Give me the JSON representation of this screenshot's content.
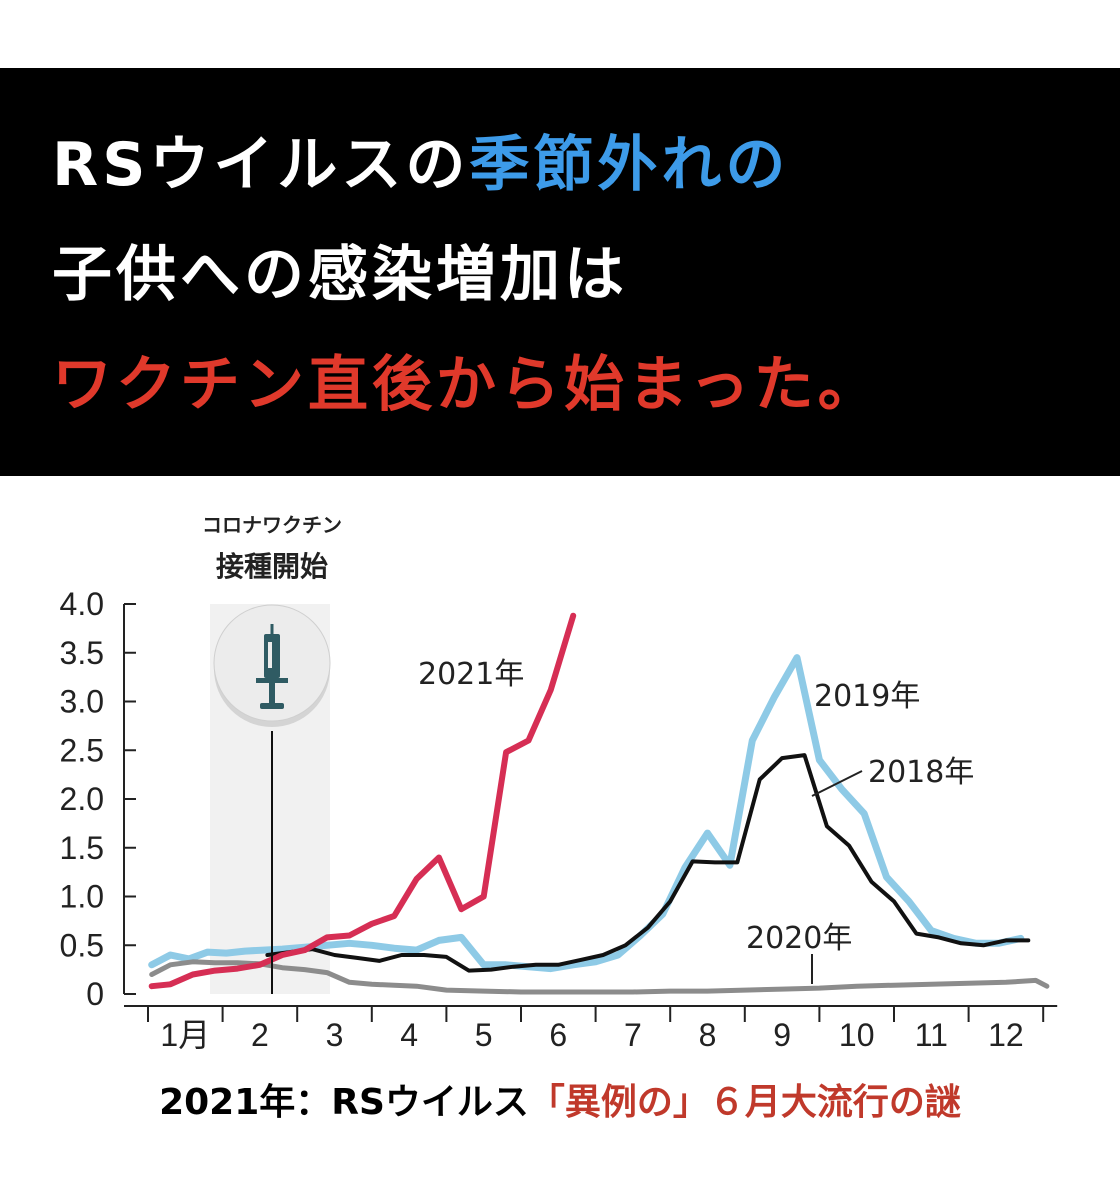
{
  "headline": {
    "line1": [
      {
        "text": "RSウイルスの",
        "color": "#ffffff"
      },
      {
        "text": "季節外れの",
        "color": "#3d9be9"
      }
    ],
    "line2": "子供への感染増加は",
    "line3": "ワクチン直後から始まった。",
    "line3_color": "#e0392b"
  },
  "caption": {
    "part1": "2021年：RSウイルス",
    "part2": "「異例の」６月大流行の謎",
    "part2_color": "#c0392b"
  },
  "chart_data": {
    "type": "line",
    "y_ticks": [
      "4.0",
      "3.5",
      "3.0",
      "2.5",
      "2.0",
      "1.5",
      "1.0",
      "0.5",
      "0"
    ],
    "ylim": [
      0,
      4.0
    ],
    "x_labels": [
      "1月",
      "2",
      "3",
      "4",
      "5",
      "6",
      "7",
      "8",
      "9",
      "10",
      "11",
      "12"
    ],
    "xlim": [
      0,
      12
    ],
    "annotation": {
      "small": "コロナワクチン",
      "large": "接種開始",
      "icon": "syringe-icon",
      "x": 1.6
    },
    "series": [
      {
        "name": "2019年",
        "color": "#8ecae6",
        "x": [
          0.05,
          0.3,
          0.55,
          0.8,
          1.05,
          1.3,
          1.55,
          1.8,
          2.1,
          2.4,
          2.7,
          3.0,
          3.3,
          3.6,
          3.9,
          4.2,
          4.5,
          4.8,
          5.1,
          5.4,
          5.7,
          6.0,
          6.3,
          6.6,
          6.9,
          7.2,
          7.5,
          7.8,
          8.1,
          8.4,
          8.7,
          9.0,
          9.3,
          9.6,
          9.9,
          10.2,
          10.5,
          10.8,
          11.1,
          11.4,
          11.7
        ],
        "values": [
          0.3,
          0.4,
          0.36,
          0.43,
          0.42,
          0.44,
          0.45,
          0.46,
          0.48,
          0.5,
          0.52,
          0.5,
          0.47,
          0.45,
          0.55,
          0.58,
          0.3,
          0.3,
          0.28,
          0.26,
          0.3,
          0.33,
          0.4,
          0.6,
          0.82,
          1.3,
          1.65,
          1.32,
          2.6,
          3.05,
          3.45,
          2.4,
          2.1,
          1.85,
          1.2,
          0.95,
          0.65,
          0.57,
          0.52,
          0.52,
          0.57
        ]
      },
      {
        "name": "2018年",
        "color": "#111111",
        "x": [
          1.6,
          1.9,
          2.2,
          2.5,
          2.8,
          3.1,
          3.4,
          3.7,
          4.0,
          4.3,
          4.6,
          4.9,
          5.2,
          5.5,
          5.8,
          6.1,
          6.4,
          6.7,
          7.0,
          7.3,
          7.6,
          7.9,
          8.2,
          8.5,
          8.8,
          9.1,
          9.4,
          9.7,
          10.0,
          10.3,
          10.6,
          10.9,
          11.2,
          11.5,
          11.8
        ],
        "values": [
          0.4,
          0.43,
          0.46,
          0.4,
          0.37,
          0.34,
          0.4,
          0.4,
          0.38,
          0.24,
          0.25,
          0.28,
          0.3,
          0.3,
          0.35,
          0.4,
          0.5,
          0.68,
          0.95,
          1.36,
          1.35,
          1.35,
          2.2,
          2.42,
          2.45,
          1.72,
          1.52,
          1.15,
          0.95,
          0.62,
          0.58,
          0.52,
          0.5,
          0.55,
          0.55
        ]
      },
      {
        "name": "2020年",
        "color": "#8c8c8c",
        "x": [
          0.05,
          0.3,
          0.6,
          0.9,
          1.2,
          1.5,
          1.8,
          2.1,
          2.4,
          2.7,
          3.0,
          3.3,
          3.6,
          4.0,
          4.5,
          5.0,
          5.5,
          6.0,
          6.5,
          7.0,
          7.5,
          8.0,
          8.5,
          9.0,
          9.5,
          10.0,
          10.5,
          11.0,
          11.5,
          11.9,
          12.05
        ],
        "values": [
          0.2,
          0.3,
          0.33,
          0.32,
          0.32,
          0.31,
          0.27,
          0.25,
          0.22,
          0.12,
          0.1,
          0.09,
          0.08,
          0.04,
          0.03,
          0.02,
          0.02,
          0.02,
          0.02,
          0.03,
          0.03,
          0.04,
          0.05,
          0.06,
          0.08,
          0.09,
          0.1,
          0.11,
          0.12,
          0.14,
          0.08
        ]
      },
      {
        "name": "2021年",
        "color": "#d62e54",
        "x": [
          0.05,
          0.3,
          0.6,
          0.9,
          1.2,
          1.5,
          1.8,
          2.1,
          2.4,
          2.7,
          3.0,
          3.3,
          3.6,
          3.9,
          4.2,
          4.5,
          4.8,
          5.1,
          5.4,
          5.7
        ],
        "values": [
          0.08,
          0.1,
          0.2,
          0.24,
          0.26,
          0.3,
          0.4,
          0.45,
          0.58,
          0.6,
          0.72,
          0.8,
          1.18,
          1.4,
          0.87,
          1.0,
          2.48,
          2.6,
          3.12,
          3.88
        ]
      }
    ],
    "grid": false
  }
}
